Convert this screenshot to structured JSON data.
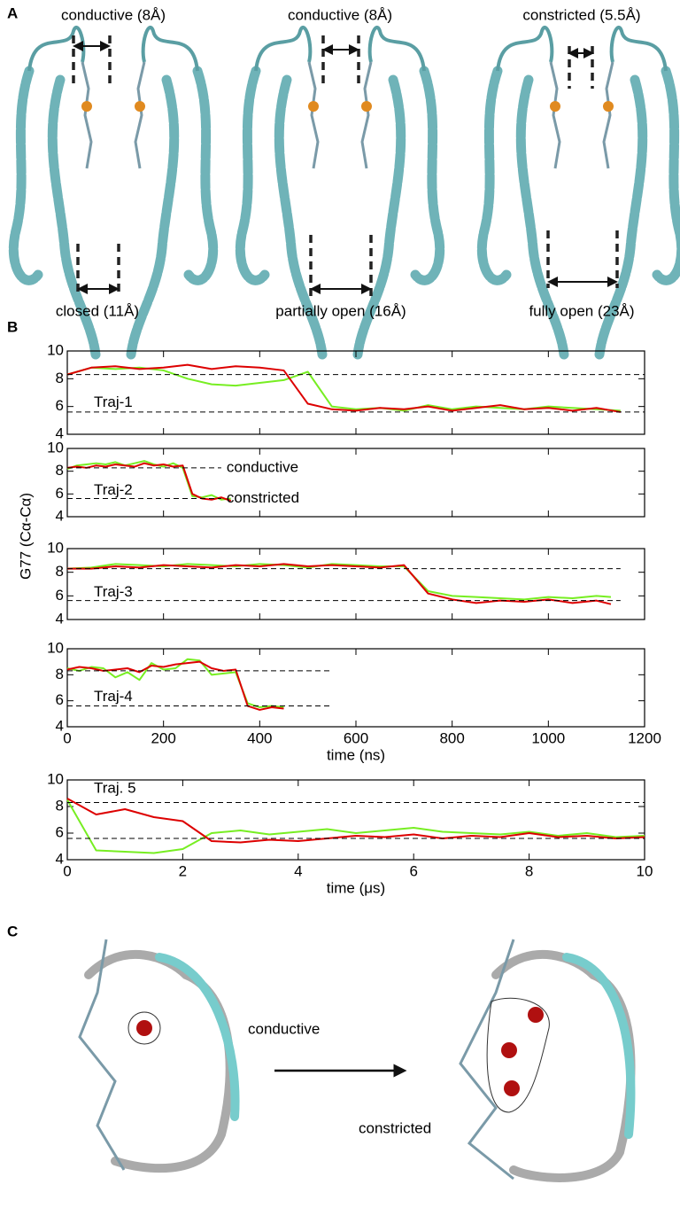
{
  "panel_labels": [
    "A",
    "B",
    "C"
  ],
  "panel_a": {
    "top_labels": [
      "conductive (8Å)",
      "conductive (8Å)",
      "constricted (5.5Å)"
    ],
    "bottom_labels": [
      "closed (11Å)",
      "partially open (16Å)",
      "fully open (23Å)"
    ]
  },
  "y_label": "G77 (Cα-Cα)",
  "chart_data": [
    {
      "type": "line",
      "label": "Traj-1",
      "xlim": [
        0,
        1200
      ],
      "xticks": [
        0,
        200,
        400,
        600,
        800,
        1000,
        1200
      ],
      "ylim": [
        4,
        10
      ],
      "yticks": [
        4,
        6,
        8,
        10
      ],
      "xtick_labels": false,
      "grid": false,
      "ref_lines": [
        {
          "y": 8.3,
          "x_end": 1200
        },
        {
          "y": 5.6,
          "x_end": 1200
        }
      ],
      "x": [
        0,
        50,
        100,
        150,
        200,
        250,
        300,
        350,
        400,
        450,
        500,
        550,
        600,
        650,
        700,
        750,
        800,
        850,
        900,
        950,
        1000,
        1050,
        1100,
        1150
      ],
      "series": [
        {
          "color": "#77ee22",
          "values": [
            8.3,
            8.8,
            8.7,
            8.8,
            8.6,
            8.0,
            7.6,
            7.5,
            7.7,
            7.9,
            8.5,
            6.0,
            5.8,
            5.9,
            5.7,
            6.1,
            5.8,
            6.0,
            5.9,
            5.8,
            6.0,
            5.9,
            5.8,
            5.7
          ]
        },
        {
          "color": "#dd0000",
          "values": [
            8.3,
            8.8,
            8.9,
            8.7,
            8.8,
            9.0,
            8.7,
            8.9,
            8.8,
            8.6,
            6.2,
            5.8,
            5.7,
            5.9,
            5.8,
            6.0,
            5.7,
            5.9,
            6.1,
            5.8,
            5.9,
            5.7,
            5.9,
            5.6
          ]
        }
      ]
    },
    {
      "type": "line",
      "label": "Traj-2",
      "xlim": [
        0,
        1200
      ],
      "xticks": [
        0,
        200,
        400,
        600,
        800,
        1000,
        1200
      ],
      "ylim": [
        4,
        10
      ],
      "yticks": [
        4,
        6,
        8,
        10
      ],
      "xtick_labels": false,
      "grid": false,
      "ref_lines": [
        {
          "y": 8.3,
          "x_end": 320,
          "label": "conductive"
        },
        {
          "y": 5.6,
          "x_end": 320,
          "label": "constricted"
        }
      ],
      "x": [
        0,
        20,
        40,
        60,
        80,
        100,
        120,
        140,
        160,
        180,
        200,
        220,
        240,
        260,
        280,
        300,
        320,
        340
      ],
      "series": [
        {
          "color": "#77ee22",
          "values": [
            8.2,
            8.5,
            8.6,
            8.7,
            8.6,
            8.8,
            8.5,
            8.7,
            8.9,
            8.6,
            8.4,
            8.7,
            8.3,
            5.8,
            5.7,
            5.9,
            5.5,
            5.6
          ]
        },
        {
          "color": "#dd0000",
          "values": [
            8.3,
            8.4,
            8.3,
            8.5,
            8.4,
            8.6,
            8.5,
            8.4,
            8.7,
            8.5,
            8.6,
            8.4,
            8.5,
            6.0,
            5.6,
            5.5,
            5.7,
            5.4
          ]
        }
      ]
    },
    {
      "type": "line",
      "label": "Traj-3",
      "xlim": [
        0,
        1200
      ],
      "xticks": [
        0,
        200,
        400,
        600,
        800,
        1000,
        1200
      ],
      "ylim": [
        4,
        10
      ],
      "yticks": [
        4,
        6,
        8,
        10
      ],
      "xtick_labels": false,
      "grid": false,
      "ref_lines": [
        {
          "y": 8.3,
          "x_end": 1150
        },
        {
          "y": 5.6,
          "x_end": 1150
        }
      ],
      "x": [
        0,
        50,
        100,
        150,
        200,
        250,
        300,
        350,
        400,
        450,
        500,
        550,
        600,
        650,
        700,
        750,
        800,
        850,
        900,
        950,
        1000,
        1050,
        1100,
        1130
      ],
      "series": [
        {
          "color": "#77ee22",
          "values": [
            8.3,
            8.4,
            8.7,
            8.6,
            8.5,
            8.7,
            8.6,
            8.5,
            8.7,
            8.6,
            8.4,
            8.7,
            8.6,
            8.5,
            8.5,
            6.4,
            6.0,
            5.9,
            5.8,
            5.7,
            5.9,
            5.8,
            6.0,
            5.9
          ]
        },
        {
          "color": "#dd0000",
          "values": [
            8.3,
            8.3,
            8.5,
            8.4,
            8.6,
            8.5,
            8.4,
            8.6,
            8.5,
            8.7,
            8.5,
            8.6,
            8.5,
            8.4,
            8.6,
            6.2,
            5.7,
            5.4,
            5.6,
            5.5,
            5.7,
            5.4,
            5.6,
            5.3
          ]
        }
      ]
    },
    {
      "type": "line",
      "label": "Traj-4",
      "xlim": [
        0,
        1200
      ],
      "xticks": [
        0,
        200,
        400,
        600,
        800,
        1000,
        1200
      ],
      "ylim": [
        4,
        10
      ],
      "yticks": [
        4,
        6,
        8,
        10
      ],
      "xtick_labels": true,
      "x_label": "time (ns)",
      "grid": false,
      "ref_lines": [
        {
          "y": 8.3,
          "x_end": 550
        },
        {
          "y": 5.6,
          "x_end": 550
        }
      ],
      "x": [
        0,
        25,
        50,
        75,
        100,
        125,
        150,
        175,
        200,
        225,
        250,
        275,
        300,
        325,
        350,
        375,
        400,
        425,
        450
      ],
      "series": [
        {
          "color": "#77ee22",
          "values": [
            8.5,
            8.3,
            8.6,
            8.5,
            7.8,
            8.2,
            7.6,
            8.9,
            8.4,
            8.5,
            9.2,
            9.1,
            8.0,
            8.1,
            8.2,
            5.8,
            5.5,
            5.6,
            5.5
          ]
        },
        {
          "color": "#dd0000",
          "values": [
            8.4,
            8.6,
            8.5,
            8.3,
            8.4,
            8.5,
            8.2,
            8.7,
            8.6,
            8.8,
            8.9,
            9.0,
            8.5,
            8.3,
            8.4,
            5.6,
            5.3,
            5.5,
            5.4
          ]
        }
      ]
    },
    {
      "type": "line",
      "label": "Traj. 5",
      "xlim": [
        0,
        10
      ],
      "xticks": [
        0,
        2,
        4,
        6,
        8,
        10
      ],
      "ylim": [
        4,
        10
      ],
      "yticks": [
        4,
        6,
        8,
        10
      ],
      "xtick_labels": true,
      "x_label": "time (μs)",
      "grid": false,
      "ref_lines": [
        {
          "y": 8.3,
          "x_end": 10
        },
        {
          "y": 5.6,
          "x_end": 10
        }
      ],
      "x": [
        0,
        0.5,
        1,
        1.5,
        2,
        2.5,
        3,
        3.5,
        4,
        4.5,
        5,
        5.5,
        6,
        6.5,
        7,
        7.5,
        8,
        8.5,
        9,
        9.5,
        10
      ],
      "series": [
        {
          "color": "#77ee22",
          "values": [
            8.5,
            4.7,
            4.6,
            4.5,
            4.8,
            6.0,
            6.2,
            5.9,
            6.1,
            6.3,
            6.0,
            6.2,
            6.4,
            6.1,
            6.0,
            5.9,
            6.1,
            5.8,
            6.0,
            5.7,
            5.8
          ]
        },
        {
          "color": "#dd0000",
          "values": [
            8.6,
            7.4,
            7.8,
            7.2,
            6.9,
            5.4,
            5.3,
            5.5,
            5.4,
            5.6,
            5.8,
            5.7,
            5.9,
            5.6,
            5.8,
            5.7,
            6.0,
            5.7,
            5.8,
            5.6,
            5.7
          ]
        }
      ]
    }
  ],
  "panel_c": {
    "labels": [
      "conductive",
      "constricted"
    ]
  }
}
